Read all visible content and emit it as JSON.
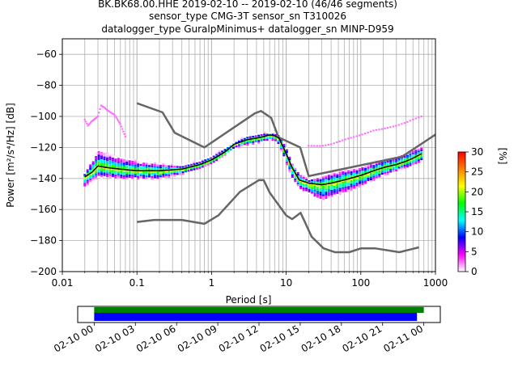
{
  "chart_data": [
    {
      "type": "heatmap",
      "title_lines": [
        "BK.BK68.00.HHE   2019-02-10 -- 2019-02-10  (46/46 segments)",
        "sensor_type CMG-3T sensor_sn T310026",
        "datalogger_type GuralpMinimus+ datalogger_sn MINP-D959"
      ],
      "xlabel": "Period [s]",
      "ylabel": "Power [m²/s⁴/Hz] [dB]",
      "xscale": "log",
      "xlim": [
        0.01,
        1000
      ],
      "ylim": [
        -200,
        -50
      ],
      "x_ticks": [
        {
          "v": 0.01,
          "label": "0.01"
        },
        {
          "v": 0.1,
          "label": "0.1"
        },
        {
          "v": 1,
          "label": "1"
        },
        {
          "v": 10,
          "label": "10"
        },
        {
          "v": 100,
          "label": "100"
        },
        {
          "v": 1000,
          "label": "1000"
        }
      ],
      "y_ticks": [
        {
          "v": -60,
          "label": "−60"
        },
        {
          "v": -80,
          "label": "−80"
        },
        {
          "v": -100,
          "label": "−100"
        },
        {
          "v": -120,
          "label": "−120"
        },
        {
          "v": -140,
          "label": "−140"
        },
        {
          "v": -160,
          "label": "−160"
        },
        {
          "v": -180,
          "label": "−180"
        },
        {
          "v": -200,
          "label": "−200"
        }
      ],
      "grid": true,
      "colorbar": {
        "label": "[%]",
        "range": [
          0,
          30
        ],
        "ticks": [
          {
            "v": 0,
            "label": "0"
          },
          {
            "v": 5,
            "label": "5"
          },
          {
            "v": 10,
            "label": "10"
          },
          {
            "v": 15,
            "label": "15"
          },
          {
            "v": 20,
            "label": "20"
          },
          {
            "v": 25,
            "label": "25"
          },
          {
            "v": 30,
            "label": "30"
          }
        ],
        "colors": [
          "#ffffff",
          "#ff00ff",
          "#0000ff",
          "#00ffff",
          "#00ff00",
          "#ffff00",
          "#ff8000",
          "#ff0000"
        ]
      },
      "noise_models": {
        "color": "#666666",
        "high": {
          "x": [
            0.1,
            0.22,
            0.32,
            0.8,
            3.8,
            4.6,
            6.3,
            7.9,
            15.4,
            20,
            354.8,
            10000
          ],
          "y": [
            -91.5,
            -97.4,
            -110.5,
            -120,
            -98,
            -96.5,
            -101,
            -113.5,
            -120,
            -138.5,
            -126,
            -80.1
          ]
        },
        "low": {
          "x": [
            0.1,
            0.17,
            0.4,
            0.8,
            1.24,
            2.4,
            4.3,
            5,
            6,
            10,
            12,
            15.6,
            21.9,
            31.6,
            45,
            70,
            101,
            154,
            328,
            600
          ],
          "y": [
            -168,
            -166.7,
            -166.7,
            -169.2,
            -163.7,
            -148.6,
            -141.1,
            -141.1,
            -149,
            -163.8,
            -166.2,
            -162.1,
            -177.5,
            -185,
            -187.5,
            -187.5,
            -185,
            -185,
            -187.5,
            -184.4
          ]
        }
      },
      "mode_line": {
        "color": "#000000",
        "x": [
          0.02,
          0.025,
          0.03,
          0.04,
          0.06,
          0.1,
          0.2,
          0.4,
          0.7,
          1.0,
          1.5,
          2.0,
          3.0,
          4.0,
          5.0,
          6.0,
          7.0,
          8.0,
          10,
          12,
          15,
          20,
          30,
          40,
          60,
          100,
          150,
          200,
          300,
          400,
          500,
          650
        ],
        "y": [
          -139,
          -136,
          -132,
          -133,
          -134,
          -135,
          -135,
          -134,
          -131,
          -128,
          -123,
          -118,
          -115,
          -114,
          -113,
          -112,
          -112.5,
          -114,
          -124,
          -133,
          -141,
          -143,
          -144,
          -143,
          -141,
          -138,
          -135,
          -133,
          -131,
          -129,
          -127,
          -124
        ]
      },
      "density_bands": [
        {
          "x": [
            0.02,
            0.025,
            0.03,
            0.04,
            0.06,
            0.1,
            0.2,
            0.4,
            0.7,
            1.0,
            1.5,
            2.0,
            3.0,
            4.0,
            5.0,
            6.0,
            7.0,
            8.0,
            10,
            12,
            15,
            20,
            30,
            40,
            60,
            100,
            150,
            200,
            300,
            400,
            500,
            650
          ],
          "lo": [
            -145,
            -141,
            -139,
            -139,
            -140,
            -140,
            -140,
            -137,
            -133,
            -130,
            -125,
            -120,
            -118,
            -117,
            -116,
            -115,
            -115,
            -118,
            -130,
            -140,
            -146,
            -150,
            -154,
            -152,
            -149,
            -145,
            -141,
            -138,
            -135,
            -133,
            -131,
            -129
          ],
          "hi": [
            -136,
            -128,
            -121,
            -123,
            -126,
            -128,
            -130,
            -131,
            -128,
            -125,
            -120,
            -116,
            -112,
            -111,
            -110,
            -110,
            -110,
            -111,
            -119,
            -129,
            -136,
            -140,
            -138,
            -136,
            -134,
            -132,
            -129,
            -127,
            -125,
            -123,
            -121,
            -119
          ]
        }
      ],
      "outlier_trace": {
        "x": [
          0.02,
          0.022,
          0.025,
          0.03,
          0.033,
          0.036,
          0.04,
          0.05,
          0.06,
          0.07
        ],
        "y": [
          -102,
          -106,
          -103,
          -100,
          -93,
          -94,
          -96,
          -99,
          -105,
          -113
        ]
      },
      "upper_trace": {
        "x": [
          20,
          30,
          40,
          60,
          100,
          150,
          200,
          300,
          400,
          500,
          650
        ],
        "y": [
          -119,
          -119,
          -118,
          -115,
          -112,
          -109,
          -108,
          -106,
          -104,
          -102,
          -100
        ]
      }
    },
    {
      "type": "timeline",
      "x_ticks": [
        {
          "v": 0,
          "label": "02-10 00"
        },
        {
          "v": 3,
          "label": "02-10 03"
        },
        {
          "v": 6,
          "label": "02-10 06"
        },
        {
          "v": 9,
          "label": "02-10 09"
        },
        {
          "v": 12,
          "label": "02-10 12"
        },
        {
          "v": 15,
          "label": "02-10 15"
        },
        {
          "v": 18,
          "label": "02-10 18"
        },
        {
          "v": 21,
          "label": "02-10 21"
        },
        {
          "v": 24,
          "label": "02-11 00"
        }
      ],
      "xlim_hours": [
        -1.2,
        25.2
      ],
      "bars": [
        {
          "color": "#008000",
          "start_hour": 0,
          "end_hour": 24.0
        },
        {
          "color": "#0000ff",
          "start_hour": 0,
          "end_hour": 23.5
        }
      ]
    }
  ]
}
